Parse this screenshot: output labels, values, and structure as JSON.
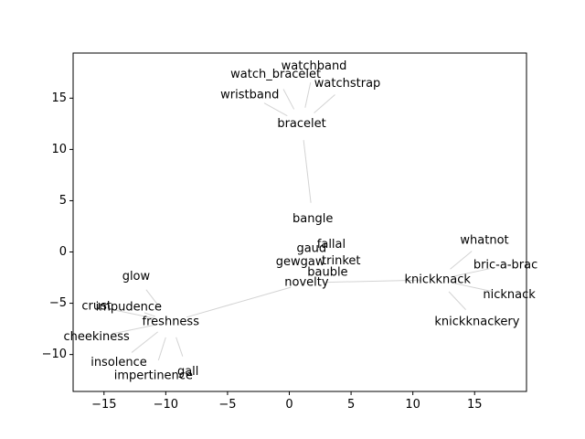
{
  "chart_data": {
    "type": "scatter",
    "title": "",
    "xlabel": "",
    "ylabel": "",
    "xlim": [
      -17.5,
      19.2
    ],
    "ylim": [
      -13.6,
      19.4
    ],
    "xticks": [
      -15,
      -10,
      -5,
      0,
      5,
      10,
      15
    ],
    "yticks": [
      -10,
      -5,
      0,
      5,
      10,
      15
    ],
    "xtick_labels": [
      "−15",
      "−10",
      "−5",
      "0",
      "5",
      "10",
      "15"
    ],
    "ytick_labels": [
      "−10",
      "−5",
      "0",
      "5",
      "10",
      "15"
    ],
    "grid": false,
    "line_color": "#d3d3d3",
    "points": [
      {
        "label": "bracelet",
        "x": 1.0,
        "y": 12.5
      },
      {
        "label": "watch_bracelet",
        "x": -1.1,
        "y": 17.3
      },
      {
        "label": "watchband",
        "x": 2.0,
        "y": 18.1
      },
      {
        "label": "watchstrap",
        "x": 4.7,
        "y": 16.4
      },
      {
        "label": "wristband",
        "x": -3.2,
        "y": 15.3
      },
      {
        "label": "bangle",
        "x": 1.9,
        "y": 3.2
      },
      {
        "label": "fallal",
        "x": 3.4,
        "y": 0.7
      },
      {
        "label": "gaud",
        "x": 1.8,
        "y": 0.3
      },
      {
        "label": "trinket",
        "x": 4.2,
        "y": -0.9
      },
      {
        "label": "gewgaw",
        "x": 0.9,
        "y": -1.0
      },
      {
        "label": "bauble",
        "x": 3.1,
        "y": -2.0
      },
      {
        "label": "novelty",
        "x": 1.4,
        "y": -3.0
      },
      {
        "label": "knickknack",
        "x": 12.0,
        "y": -2.7
      },
      {
        "label": "whatnot",
        "x": 15.8,
        "y": 1.1
      },
      {
        "label": "bric-a-brac",
        "x": 17.5,
        "y": -1.3
      },
      {
        "label": "nicknack",
        "x": 17.8,
        "y": -4.2
      },
      {
        "label": "knickknackery",
        "x": 15.2,
        "y": -6.8
      },
      {
        "label": "freshness",
        "x": -9.6,
        "y": -6.8
      },
      {
        "label": "glow",
        "x": -12.4,
        "y": -2.4
      },
      {
        "label": "crust",
        "x": -15.6,
        "y": -5.3
      },
      {
        "label": "impudence",
        "x": -13.0,
        "y": -5.4
      },
      {
        "label": "cheekiness",
        "x": -15.6,
        "y": -8.3
      },
      {
        "label": "insolence",
        "x": -13.8,
        "y": -10.8
      },
      {
        "label": "impertinence",
        "x": -11.0,
        "y": -12.1
      },
      {
        "label": "gall",
        "x": -8.2,
        "y": -11.7
      }
    ],
    "edges": [
      [
        "bracelet",
        "watch_bracelet"
      ],
      [
        "bracelet",
        "watchband"
      ],
      [
        "bracelet",
        "watchstrap"
      ],
      [
        "bracelet",
        "wristband"
      ],
      [
        "bracelet",
        "bangle"
      ],
      [
        "bangle",
        "fallal"
      ],
      [
        "bangle",
        "gaud"
      ],
      [
        "novelty",
        "knickknack"
      ],
      [
        "novelty",
        "freshness"
      ],
      [
        "knickknack",
        "whatnot"
      ],
      [
        "knickknack",
        "bric-a-brac"
      ],
      [
        "knickknack",
        "nicknack"
      ],
      [
        "knickknack",
        "knickknackery"
      ],
      [
        "freshness",
        "glow"
      ],
      [
        "freshness",
        "crust"
      ],
      [
        "freshness",
        "impudence"
      ],
      [
        "freshness",
        "cheekiness"
      ],
      [
        "freshness",
        "insolence"
      ],
      [
        "freshness",
        "impertinence"
      ],
      [
        "freshness",
        "gall"
      ]
    ]
  }
}
